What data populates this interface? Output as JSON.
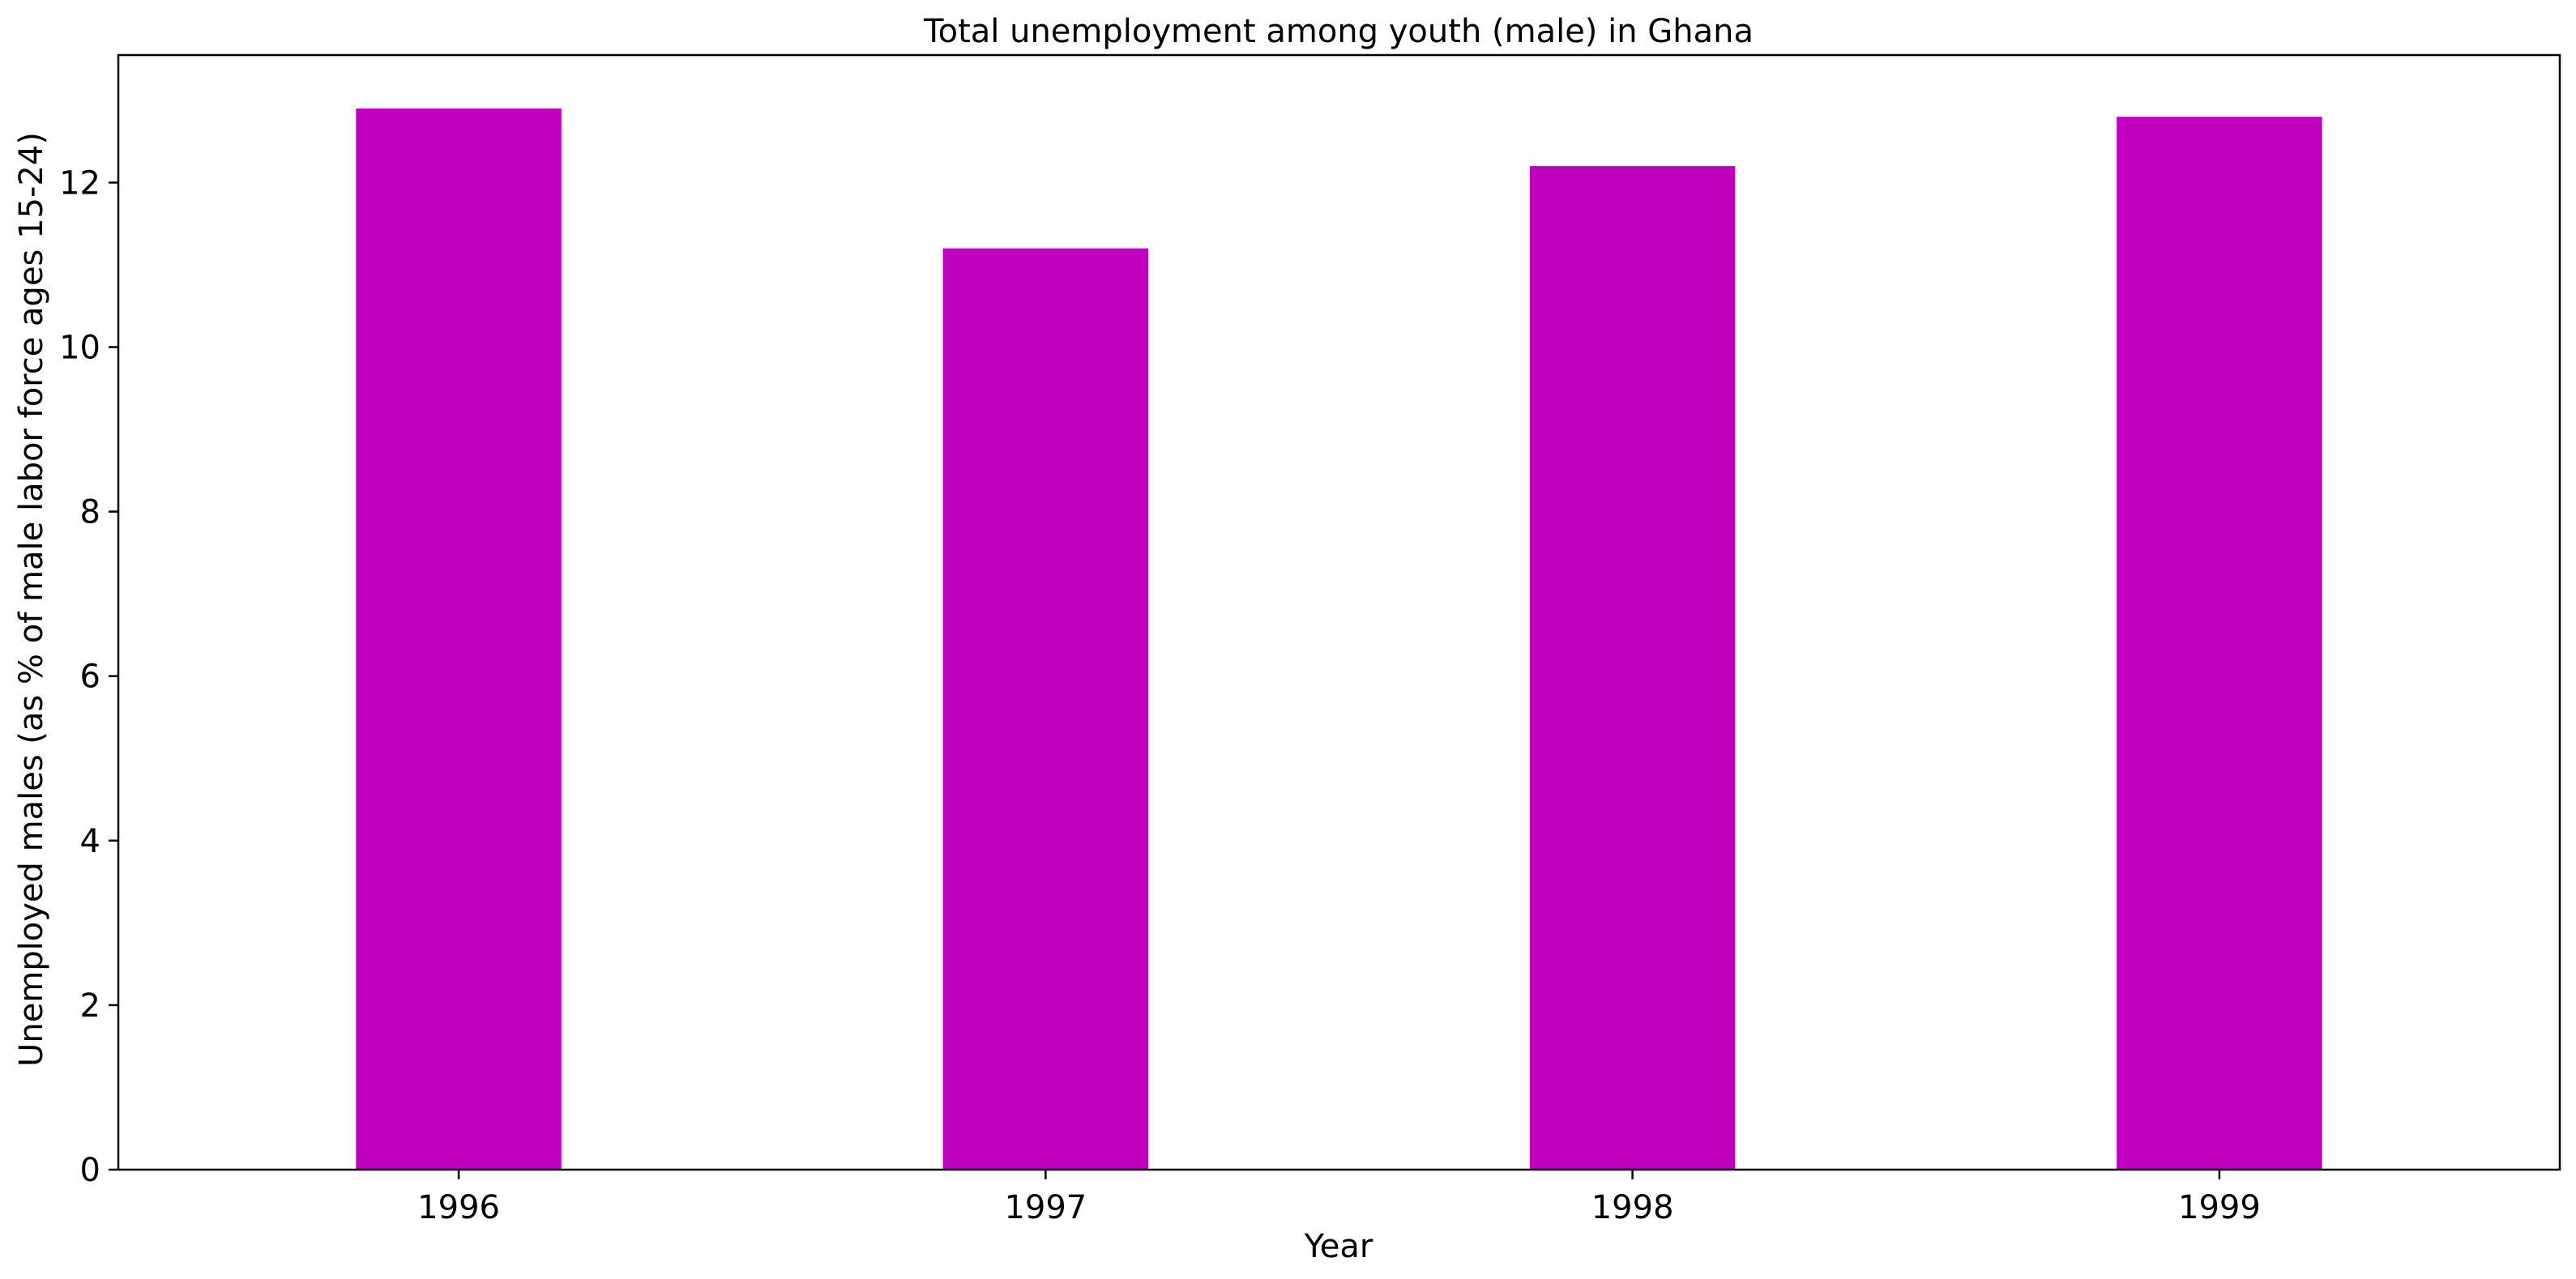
{
  "chart_data": {
    "type": "bar",
    "title": "Total unemployment among youth (male) in Ghana",
    "xlabel": "Year",
    "ylabel": "Unemployed males (as % of male labor force ages 15-24)",
    "categories": [
      "1996",
      "1997",
      "1998",
      "1999"
    ],
    "series": [
      {
        "values": [
          12.9,
          11.2,
          12.2,
          12.8
        ],
        "color": "#bf00bf"
      }
    ],
    "yticks": [
      0,
      2,
      4,
      6,
      8,
      10,
      12
    ],
    "ylim": [
      0,
      13.55
    ],
    "grid": false,
    "legend": "none"
  }
}
